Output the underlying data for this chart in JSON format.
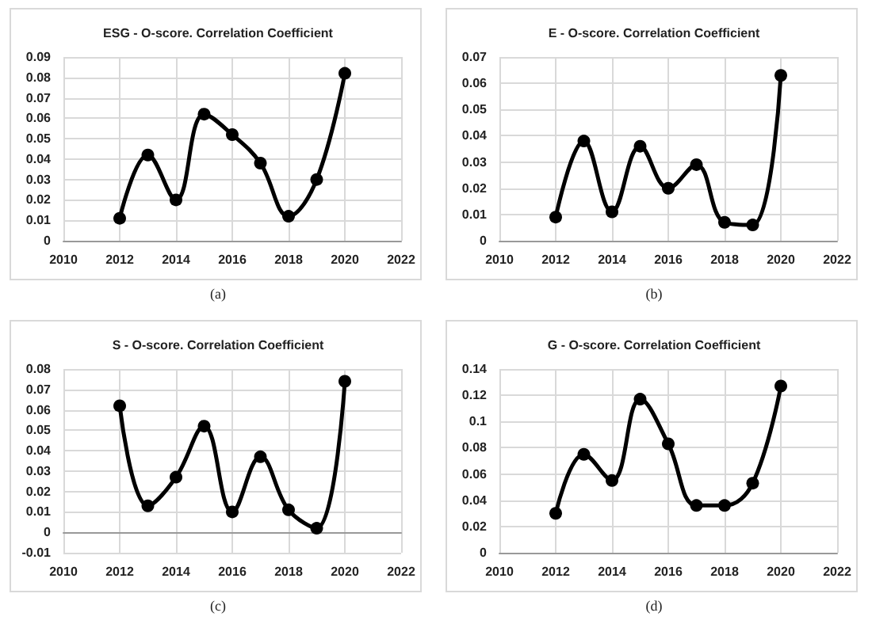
{
  "chart_data": [
    {
      "type": "line",
      "title": "ESG - O-score. Correlation Coefficient",
      "annotations": [
        "(a)"
      ],
      "x": [
        2012,
        2013,
        2014,
        2015,
        2016,
        2017,
        2018,
        2019,
        2020
      ],
      "series": [
        {
          "color": "#000000",
          "values": [
            0.011,
            0.042,
            0.02,
            0.062,
            0.052,
            0.038,
            0.012,
            0.03,
            0.082
          ]
        }
      ],
      "xlim": [
        2010,
        2022
      ],
      "xticks": [
        2010,
        2012,
        2014,
        2016,
        2018,
        2020,
        2022
      ],
      "ylim": [
        0,
        0.09
      ],
      "yticks": [
        0,
        0.01,
        0.02,
        0.03,
        0.04,
        0.05,
        0.06,
        0.07,
        0.08,
        0.09
      ],
      "grid": true,
      "marker": "circle"
    },
    {
      "type": "line",
      "title": "E - O-score. Correlation Coefficient",
      "annotations": [
        "(b)"
      ],
      "x": [
        2012,
        2013,
        2014,
        2015,
        2016,
        2017,
        2018,
        2019,
        2020
      ],
      "series": [
        {
          "color": "#000000",
          "values": [
            0.009,
            0.038,
            0.011,
            0.036,
            0.02,
            0.029,
            0.007,
            0.006,
            0.063
          ]
        }
      ],
      "xlim": [
        2010,
        2022
      ],
      "xticks": [
        2010,
        2012,
        2014,
        2016,
        2018,
        2020,
        2022
      ],
      "ylim": [
        0,
        0.07
      ],
      "yticks": [
        0,
        0.01,
        0.02,
        0.03,
        0.04,
        0.05,
        0.06,
        0.07
      ],
      "grid": true,
      "marker": "circle"
    },
    {
      "type": "line",
      "title": "S - O-score. Correlation Coefficient",
      "annotations": [
        "(c)"
      ],
      "x": [
        2012,
        2013,
        2014,
        2015,
        2016,
        2017,
        2018,
        2019,
        2020
      ],
      "series": [
        {
          "color": "#000000",
          "values": [
            0.062,
            0.013,
            0.027,
            0.052,
            0.01,
            0.037,
            0.011,
            0.002,
            0.074
          ]
        }
      ],
      "xlim": [
        2010,
        2022
      ],
      "xticks": [
        2010,
        2012,
        2014,
        2016,
        2018,
        2020,
        2022
      ],
      "ylim": [
        -0.01,
        0.08
      ],
      "yticks": [
        -0.01,
        0,
        0.01,
        0.02,
        0.03,
        0.04,
        0.05,
        0.06,
        0.07,
        0.08
      ],
      "grid": true,
      "marker": "circle"
    },
    {
      "type": "line",
      "title": "G - O-score. Correlation Coefficient",
      "annotations": [
        "(d)"
      ],
      "x": [
        2012,
        2013,
        2014,
        2015,
        2016,
        2017,
        2018,
        2019,
        2020
      ],
      "series": [
        {
          "color": "#000000",
          "values": [
            0.03,
            0.075,
            0.055,
            0.117,
            0.083,
            0.036,
            0.036,
            0.053,
            0.127
          ]
        }
      ],
      "xlim": [
        2010,
        2022
      ],
      "xticks": [
        2010,
        2012,
        2014,
        2016,
        2018,
        2020,
        2022
      ],
      "ylim": [
        0,
        0.14
      ],
      "yticks": [
        0,
        0.02,
        0.04,
        0.06,
        0.08,
        0.1,
        0.12,
        0.14
      ],
      "grid": true,
      "marker": "circle"
    }
  ]
}
